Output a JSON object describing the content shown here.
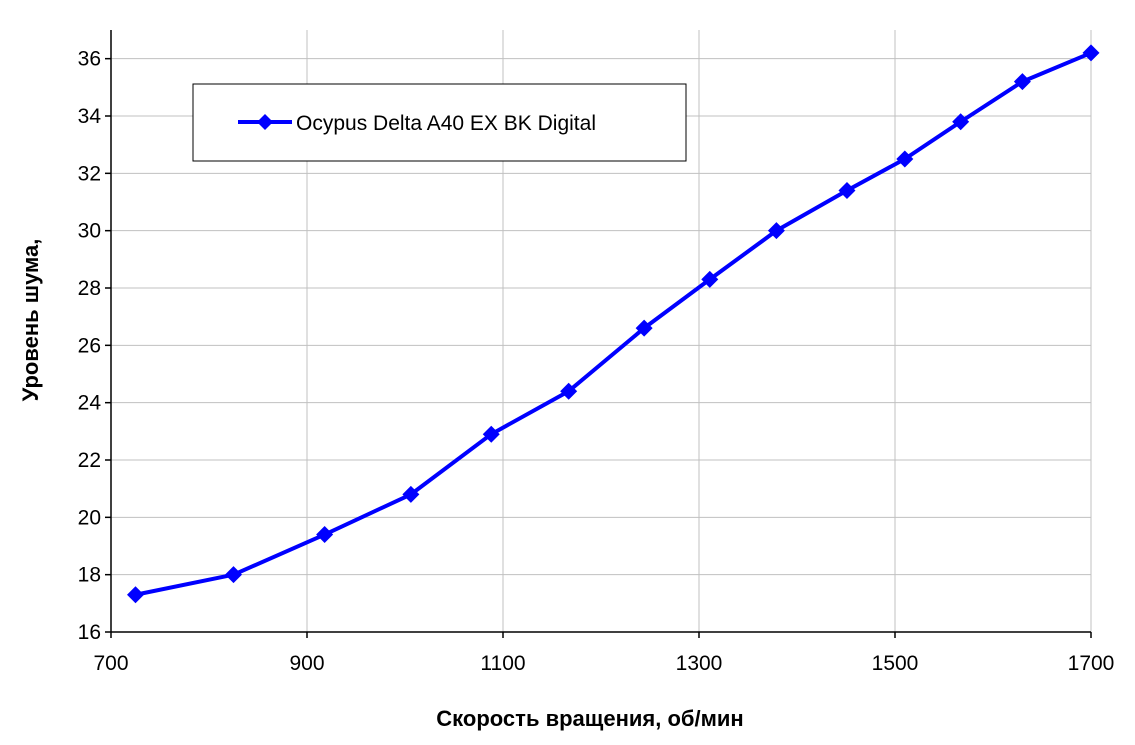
{
  "chart_data": {
    "type": "line",
    "xlabel": "Скорость вращения, об/мин",
    "ylabel": "Уровень шума,",
    "xlim": [
      700,
      1700
    ],
    "ylim": [
      16,
      37
    ],
    "xticks": [
      700,
      900,
      1100,
      1300,
      1500,
      1700
    ],
    "yticks": [
      16,
      18,
      20,
      22,
      24,
      26,
      28,
      30,
      32,
      34,
      36
    ],
    "xtick_labels": [
      "700",
      "900",
      "1100",
      "1300",
      "1500",
      "1700"
    ],
    "ytick_labels": [
      "16",
      "18",
      "20",
      "22",
      "24",
      "26",
      "28",
      "30",
      "32",
      "34",
      "36"
    ],
    "grid": true,
    "legend_position": "top-left",
    "series": [
      {
        "name": "Ocypus Delta A40 EX BK Digital",
        "color": "#0000FF",
        "marker": "diamond",
        "x": [
          725,
          825,
          918,
          1006,
          1088,
          1167,
          1244,
          1311,
          1379,
          1451,
          1510,
          1567,
          1630,
          1700
        ],
        "y": [
          17.3,
          18.0,
          19.4,
          20.8,
          22.9,
          24.4,
          26.6,
          28.3,
          30.0,
          31.4,
          32.5,
          33.8,
          35.2,
          36.2
        ]
      }
    ]
  }
}
